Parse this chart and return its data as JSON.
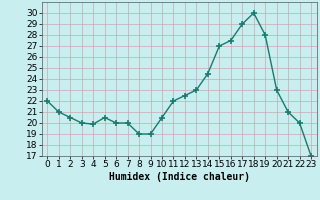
{
  "x": [
    0,
    1,
    2,
    3,
    4,
    5,
    6,
    7,
    8,
    9,
    10,
    11,
    12,
    13,
    14,
    15,
    16,
    17,
    18,
    19,
    20,
    21,
    22,
    23
  ],
  "y": [
    22,
    21,
    20.5,
    20,
    19.9,
    20.5,
    20,
    20,
    19,
    19,
    20.5,
    22,
    22.5,
    23,
    24.5,
    27,
    27.5,
    29,
    30,
    28,
    23,
    21,
    20,
    17
  ],
  "line_color": "#1a7a6e",
  "marker_color": "#1a7a6e",
  "bg_color": "#c8eef0",
  "grid_color": "#b8d8da",
  "xlabel": "Humidex (Indice chaleur)",
  "ylim": [
    17,
    31
  ],
  "xlim": [
    -0.5,
    23.5
  ],
  "yticks": [
    17,
    18,
    19,
    20,
    21,
    22,
    23,
    24,
    25,
    26,
    27,
    28,
    29,
    30
  ],
  "xticks": [
    0,
    1,
    2,
    3,
    4,
    5,
    6,
    7,
    8,
    9,
    10,
    11,
    12,
    13,
    14,
    15,
    16,
    17,
    18,
    19,
    20,
    21,
    22,
    23
  ],
  "xlabel_fontsize": 7,
  "tick_fontsize": 6.5,
  "line_width": 1.0,
  "marker_size": 4
}
